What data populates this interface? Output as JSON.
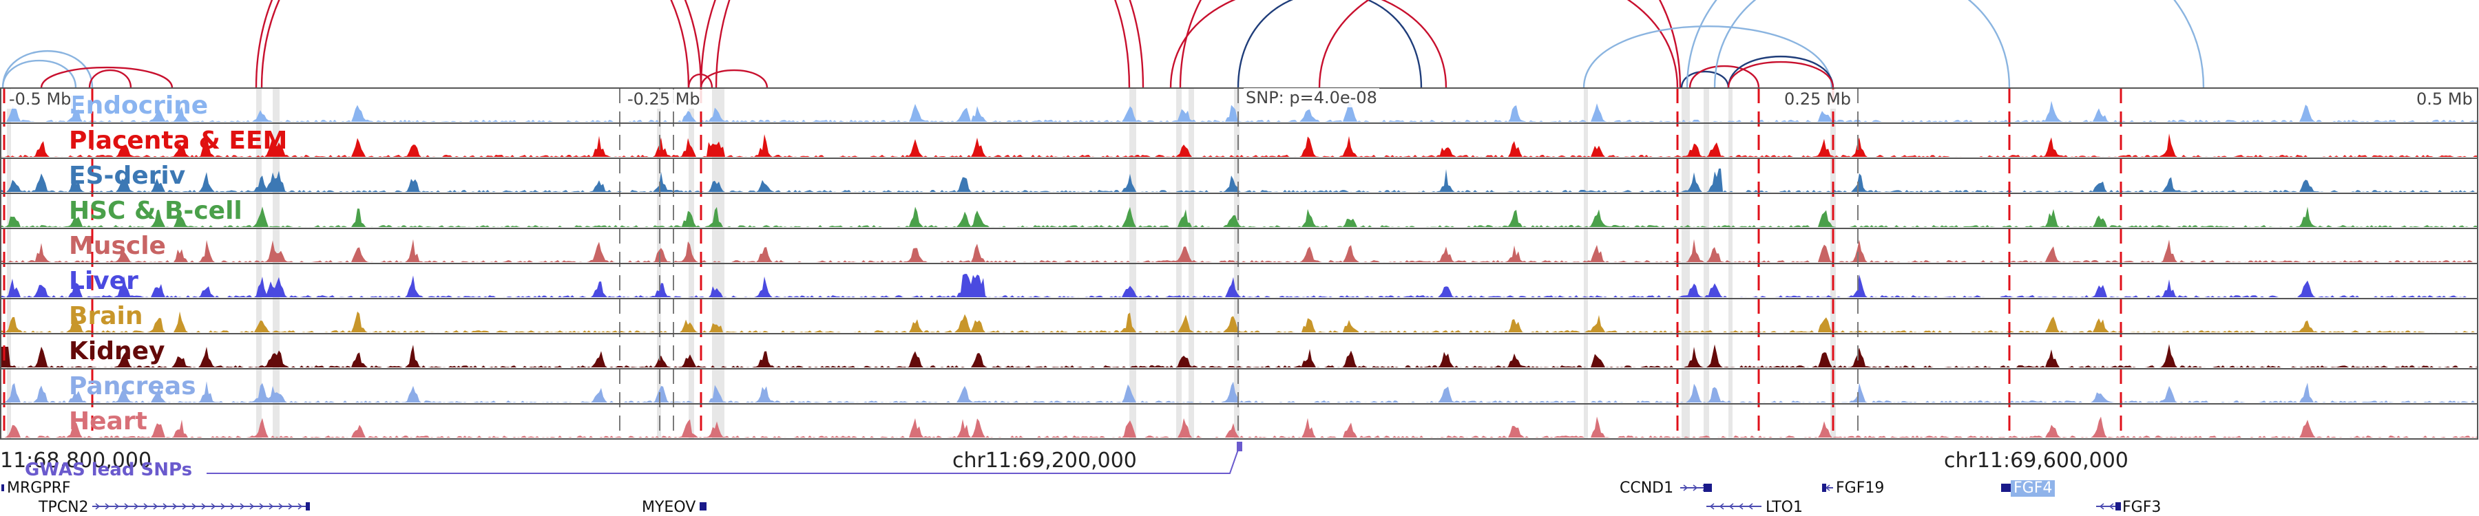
{
  "axis": {
    "ticks": [
      "-0.5 Mb",
      "-0.25 Mb",
      "0.25 Mb",
      "0.5 Mb"
    ],
    "snp_label": "SNP: p=4.0e-08",
    "coordinates": [
      "11:68,800,000",
      "chr11:69,200,000",
      "chr11:69,600,000"
    ]
  },
  "tracks": [
    {
      "name": "Endocrine",
      "color": "#8ab4f0"
    },
    {
      "name": "Placenta & EEM",
      "color": "#e01010"
    },
    {
      "name": "ES-deriv",
      "color": "#3c78b4"
    },
    {
      "name": "HSC & B-cell",
      "color": "#4aa04a"
    },
    {
      "name": "Muscle",
      "color": "#c86464"
    },
    {
      "name": "Liver",
      "color": "#4a4ae0"
    },
    {
      "name": "Brain",
      "color": "#c8962a"
    },
    {
      "name": "Kidney",
      "color": "#640a0a"
    },
    {
      "name": "Pancreas",
      "color": "#8cace8"
    },
    {
      "name": "Heart",
      "color": "#d87078"
    }
  ],
  "gwas": {
    "label": "GWAS lead SNPs",
    "color": "#6a5acd"
  },
  "genes": [
    {
      "name": "MRGPRF"
    },
    {
      "name": "TPCN2"
    },
    {
      "name": "MYEOV"
    },
    {
      "name": "CCND1"
    },
    {
      "name": "LTO1"
    },
    {
      "name": "FGF19"
    },
    {
      "name": "FGF4",
      "highlighted": true
    },
    {
      "name": "FGF3"
    }
  ],
  "colors": {
    "loop_red": "#c8102e",
    "loop_navy": "#1f3d7a",
    "loop_lightblue": "#8ab4e0",
    "marker_red": "#e0101a"
  }
}
